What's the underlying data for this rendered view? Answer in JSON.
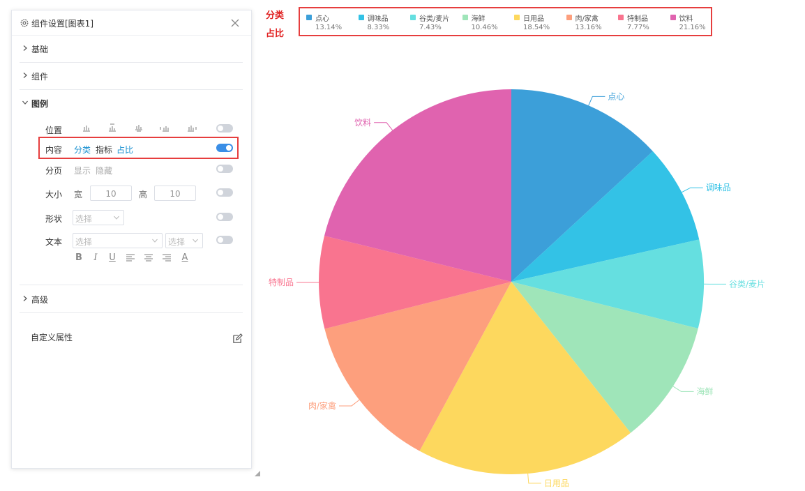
{
  "panel": {
    "title": "组件设置[图表1]",
    "sections": {
      "basic": "基础",
      "component": "组件",
      "legend": "图例",
      "advanced": "高级"
    },
    "legend_settings": {
      "position": {
        "label": "位置",
        "enabled": false
      },
      "content": {
        "label": "内容",
        "options": [
          "分类",
          "指标",
          "占比"
        ],
        "active": [
          "分类",
          "占比"
        ],
        "enabled": true
      },
      "paging": {
        "label": "分页",
        "options": [
          "显示",
          "隐藏"
        ],
        "enabled": false
      },
      "size": {
        "label": "大小",
        "width_label": "宽",
        "width_value": "10",
        "height_label": "高",
        "height_value": "10",
        "enabled": false
      },
      "shape": {
        "label": "形状",
        "placeholder": "选择",
        "enabled": false
      },
      "text": {
        "label": "文本",
        "placeholder1": "选择",
        "placeholder2": "选择",
        "enabled": false
      },
      "format_buttons": [
        "B",
        "I",
        "U",
        "align-left",
        "align-center",
        "align-right",
        "A"
      ]
    },
    "custom_props_label": "自定义属性"
  },
  "annotations": {
    "category": "分类",
    "ratio": "占比"
  },
  "chart_data": {
    "type": "pie",
    "title": "",
    "legend_position": "top",
    "categories": [
      "点心",
      "调味品",
      "谷类/麦片",
      "海鲜",
      "日用品",
      "肉/家禽",
      "特制品",
      "饮料"
    ],
    "values": [
      13.14,
      8.33,
      7.43,
      10.46,
      18.54,
      13.16,
      7.77,
      21.16
    ],
    "value_labels": [
      "13.14%",
      "8.33%",
      "7.43%",
      "10.46%",
      "18.54%",
      "13.16%",
      "7.77%",
      "21.16%"
    ],
    "colors": [
      "#3c9fd9",
      "#33c2e6",
      "#65dfe0",
      "#9fe5b9",
      "#fdd85e",
      "#fd9f7d",
      "#f9748f",
      "#e063af"
    ]
  }
}
